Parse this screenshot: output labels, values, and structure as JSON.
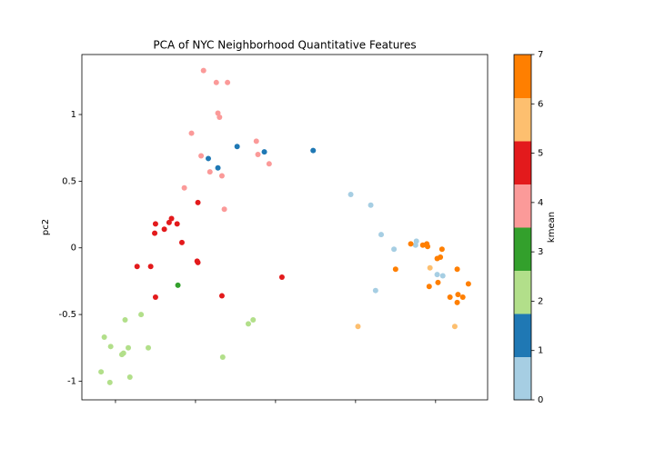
{
  "chart_data": {
    "type": "scatter",
    "title": "PCA of NYC Neighborhood Quantitative Features",
    "y_label": "pc2",
    "colorbar_label": "kmean",
    "xlim": [
      -1.42,
      3.65
    ],
    "ylim": [
      -1.14,
      1.45
    ],
    "xticks": [
      -1,
      0,
      1,
      2,
      3
    ],
    "xtick_labels": false,
    "yticks": [
      -1.0,
      -0.5,
      0.0,
      0.5,
      1.0
    ],
    "grid": false,
    "clim": [
      0,
      7
    ],
    "colorbar_ticks": [
      0,
      1,
      2,
      3,
      4,
      5,
      6,
      7
    ],
    "colors": [
      "#a6cee3",
      "#1f78b4",
      "#b2df8a",
      "#33a02c",
      "#fb9a99",
      "#e31a1c",
      "#fdbf6f",
      "#ff7f00"
    ],
    "x": [
      0.1,
      0.26,
      0.4,
      0.28,
      0.3,
      -0.05,
      0.76,
      0.07,
      0.78,
      0.92,
      0.18,
      0.33,
      -0.14,
      0.36,
      0.16,
      0.52,
      0.86,
      1.47,
      0.28,
      0.03,
      -0.3,
      -0.5,
      -0.23,
      -0.33,
      -0.39,
      -0.51,
      -0.17,
      -0.73,
      -0.56,
      0.02,
      0.03,
      -0.5,
      0.33,
      1.08,
      -0.22,
      -0.68,
      -0.88,
      -1.14,
      -1.06,
      -0.92,
      -0.9,
      -0.84,
      -0.59,
      -1.18,
      -0.82,
      -1.07,
      0.34,
      0.66,
      0.72,
      1.94,
      2.19,
      2.32,
      2.48,
      2.76,
      2.75,
      2.25,
      3.02,
      3.09,
      2.69,
      2.84,
      2.89,
      2.9,
      3.08,
      3.06,
      3.02,
      2.5,
      2.92,
      3.03,
      3.27,
      3.41,
      3.18,
      3.28,
      3.34,
      3.27,
      2.03,
      2.93,
      3.24
    ],
    "y": [
      1.33,
      1.24,
      1.24,
      1.01,
      0.98,
      0.86,
      0.8,
      0.69,
      0.7,
      0.63,
      0.57,
      0.54,
      0.45,
      0.29,
      0.67,
      0.76,
      0.72,
      0.73,
      0.6,
      0.34,
      0.22,
      0.18,
      0.18,
      0.19,
      0.14,
      0.11,
      0.04,
      -0.14,
      -0.14,
      -0.1,
      -0.11,
      -0.37,
      -0.36,
      -0.22,
      -0.28,
      -0.5,
      -0.54,
      -0.67,
      -0.74,
      -0.8,
      -0.79,
      -0.75,
      -0.75,
      -0.93,
      -0.97,
      -1.01,
      -0.82,
      -0.57,
      -0.54,
      0.4,
      0.32,
      0.1,
      -0.01,
      0.05,
      0.02,
      -0.32,
      -0.2,
      -0.21,
      0.03,
      0.02,
      0.03,
      0.01,
      -0.01,
      -0.07,
      -0.08,
      -0.16,
      -0.29,
      -0.26,
      -0.16,
      -0.27,
      -0.37,
      -0.35,
      -0.37,
      -0.41,
      -0.59,
      -0.15,
      -0.59
    ],
    "kmean": [
      4,
      4,
      4,
      4,
      4,
      4,
      4,
      4,
      4,
      4,
      4,
      4,
      4,
      4,
      1,
      1,
      1,
      1,
      1,
      5,
      5,
      5,
      5,
      5,
      5,
      5,
      5,
      5,
      5,
      5,
      5,
      5,
      5,
      5,
      3,
      2,
      2,
      2,
      2,
      2,
      2,
      2,
      2,
      2,
      2,
      2,
      2,
      2,
      2,
      0,
      0,
      0,
      0,
      0,
      0,
      0,
      0,
      0,
      7,
      7,
      7,
      7,
      7,
      7,
      7,
      7,
      7,
      7,
      7,
      7,
      7,
      7,
      7,
      7,
      6,
      6,
      6
    ]
  }
}
